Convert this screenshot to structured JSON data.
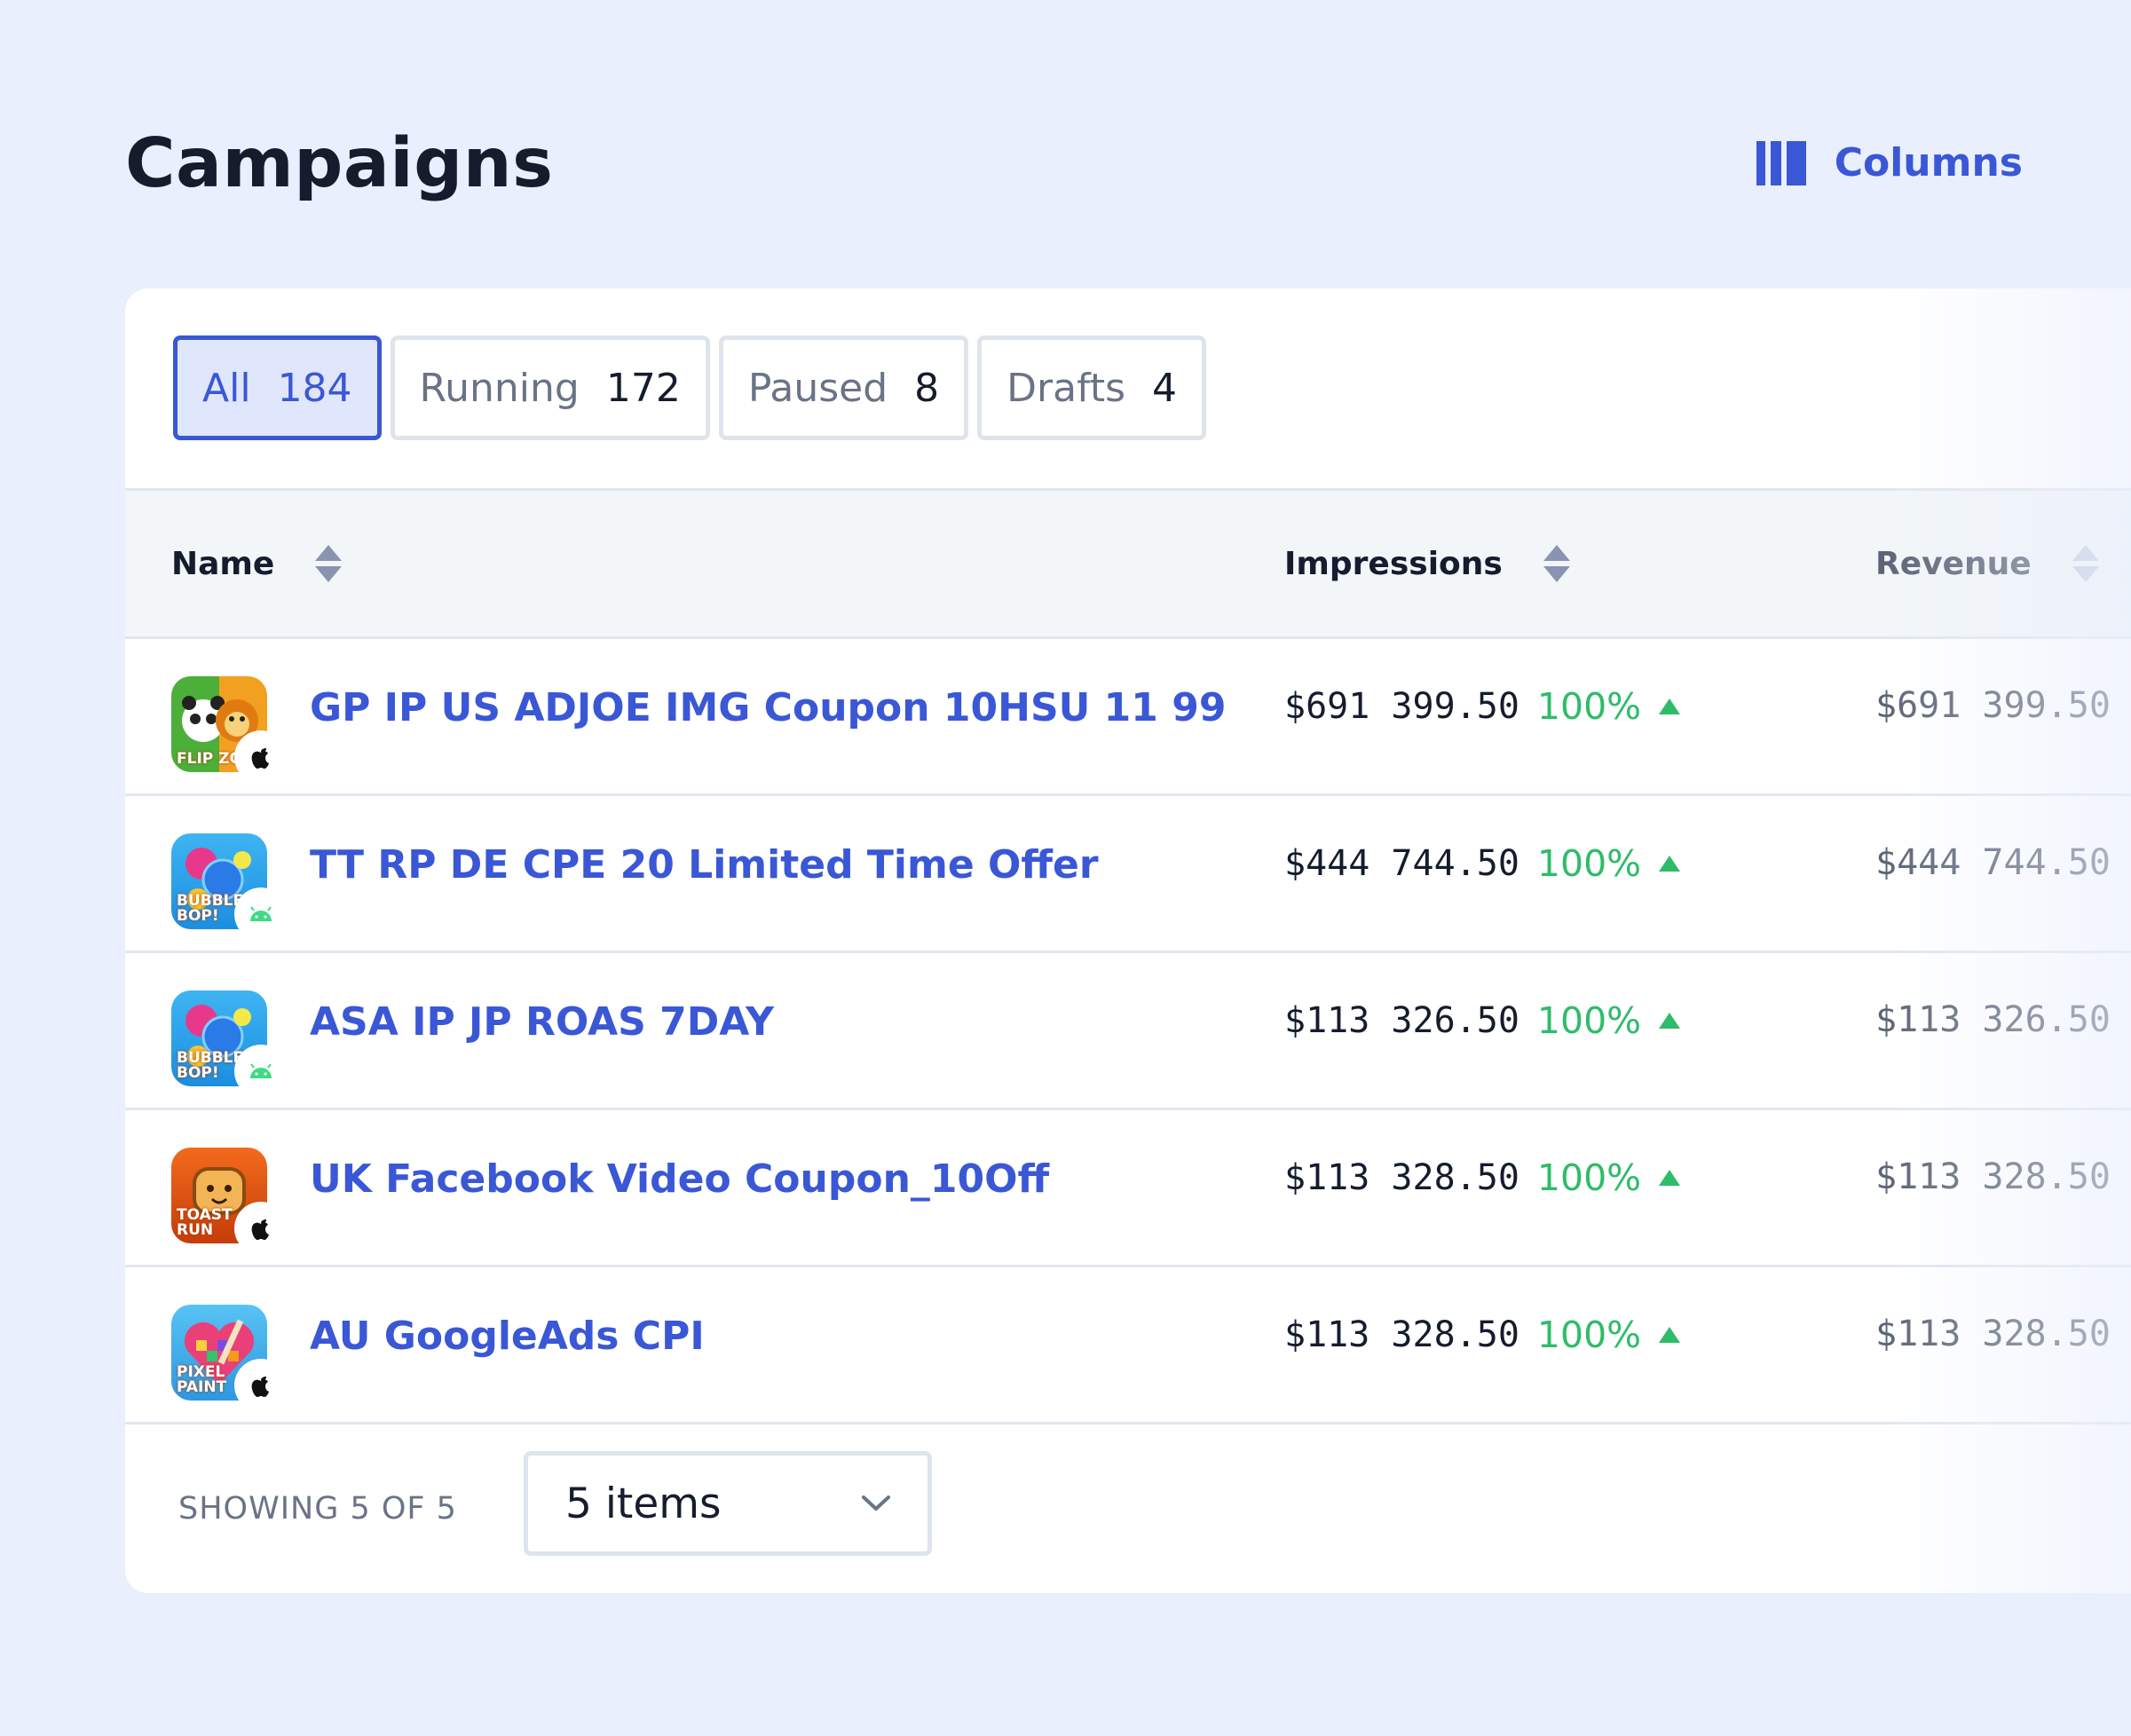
{
  "page": {
    "title": "Campaigns"
  },
  "toolbar": {
    "columns_label": "Columns",
    "columns_icon": "columns-icon"
  },
  "filters": [
    {
      "label": "All",
      "count": "184",
      "active": true
    },
    {
      "label": "Running",
      "count": "172",
      "active": false
    },
    {
      "label": "Paused",
      "count": "8",
      "active": false
    },
    {
      "label": "Drafts",
      "count": "4",
      "active": false
    }
  ],
  "table": {
    "columns": [
      {
        "label": "Name"
      },
      {
        "label": "Impressions"
      },
      {
        "label": "Revenue"
      }
    ],
    "rows": [
      {
        "app": "FLIP ZO",
        "platform": "apple-icon",
        "name": "GP IP US ADJOE IMG Coupon 10HSU 11 99",
        "impressions": "$691 399.50",
        "delta": "100%",
        "revenue": "$691 399.50"
      },
      {
        "app": "BUBBLE BOP!",
        "platform": "android-icon",
        "name": "TT RP DE CPE 20 Limited Time Offer",
        "impressions": "$444 744.50",
        "delta": "100%",
        "revenue": "$444 744.50"
      },
      {
        "app": "BUBBLE BOP!",
        "platform": "android-icon",
        "name": "ASA IP JP ROAS 7DAY",
        "impressions": "$113 326.50",
        "delta": "100%",
        "revenue": "$113 326.50"
      },
      {
        "app": "TOAST RUN",
        "platform": "apple-icon",
        "name": "UK Facebook Video Coupon_10Off",
        "impressions": "$113 328.50",
        "delta": "100%",
        "revenue": "$113 328.50"
      },
      {
        "app": "PIXEL PAINT",
        "platform": "apple-icon",
        "name": "AU GoogleAds CPI",
        "impressions": "$113 328.50",
        "delta": "100%",
        "revenue": "$113 328.50"
      }
    ]
  },
  "footer": {
    "showing": "SHOWING 5 OF 5",
    "page_size": "5 items"
  },
  "colors": {
    "accent": "#3a57d6",
    "positive": "#2fbc6a",
    "background": "#e9effd"
  }
}
